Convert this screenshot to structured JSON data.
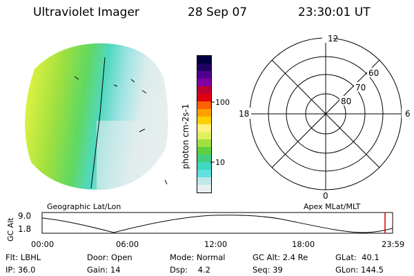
{
  "header": {
    "instrument": "Ultraviolet Imager",
    "date": "28 Sep 07",
    "time": "23:30:01 UT"
  },
  "colorbar": {
    "unit_label": "photon cm-2s-1",
    "tick_labels": [
      "100",
      "10"
    ],
    "colors": [
      "#000040",
      "#200060",
      "#500090",
      "#8000a0",
      "#c00030",
      "#e00010",
      "#ff6000",
      "#ffa000",
      "#ffd000",
      "#fff080",
      "#e0f060",
      "#a0e040",
      "#60d040",
      "#40d080",
      "#40d8c0",
      "#60e0e0",
      "#c0e8e8",
      "#e8eeee"
    ]
  },
  "polar_grid": {
    "mlt_labels": [
      "12",
      "18",
      "6",
      "0"
    ],
    "mlat_labels": [
      "60",
      "70",
      "80"
    ]
  },
  "map_labels": {
    "left": "Geographic Lat/Lon",
    "right": "Apex MLat/MLT"
  },
  "altitude_plot": {
    "ylabel": "GC Alt",
    "y_ticks": [
      "9.0",
      "1.8"
    ],
    "x_ticks": [
      "00:00",
      "06:00",
      "12:00",
      "18:00",
      "23:59"
    ],
    "current_marker_color": "#cc0000"
  },
  "footer": {
    "row1": [
      {
        "label": "Flt:",
        "value": "LBHL"
      },
      {
        "label": "Door:",
        "value": "Open"
      },
      {
        "label": "Mode:",
        "value": "Normal"
      },
      {
        "label": "GC Alt:",
        "value": "2.4 Re"
      },
      {
        "label": "GLat:",
        "value": "40.1"
      }
    ],
    "row2": [
      {
        "label": "IP:",
        "value": "36.0"
      },
      {
        "label": "Gain:",
        "value": "14"
      },
      {
        "label": "Dsp:",
        "value": "4.2"
      },
      {
        "label": "Seq:",
        "value": "39"
      },
      {
        "label": "GLon:",
        "value": "144.5"
      }
    ]
  }
}
